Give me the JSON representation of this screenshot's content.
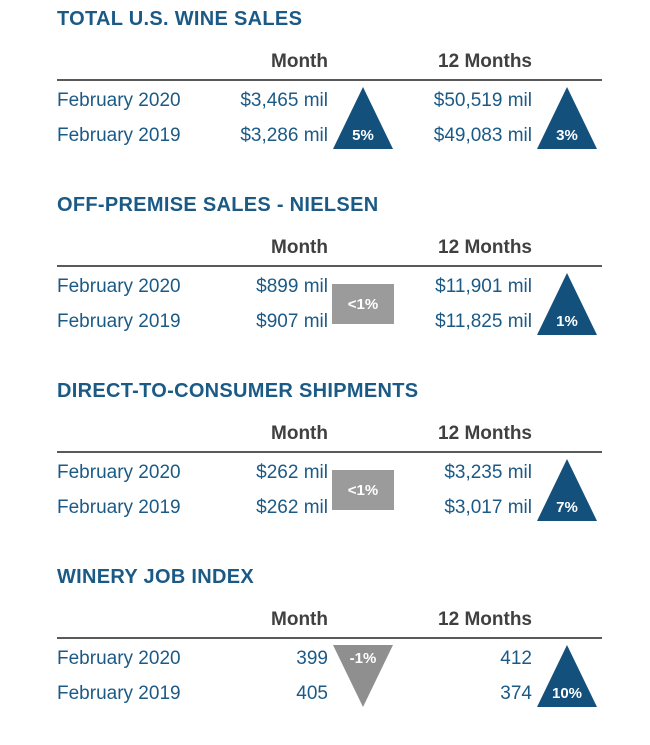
{
  "headers": {
    "month": "Month",
    "twelve_months": "12 Months"
  },
  "colors": {
    "text_blue": "#1C5A86",
    "triangle_blue": "#14507C",
    "flat_gray": "#9B9B9B",
    "down_gray": "#8F8F8F",
    "header_text": "#404040",
    "rule_gray": "#595959"
  },
  "sections": [
    {
      "title": "TOTAL U.S. WINE SALES",
      "rows": [
        {
          "label": "February 2020",
          "month_value": "$3,465 mil",
          "twelve_value": "$50,519 mil"
        },
        {
          "label": "February 2019",
          "month_value": "$3,286 mil",
          "twelve_value": "$49,083 mil"
        }
      ],
      "month_change": {
        "direction": "up",
        "label": "5%"
      },
      "twelve_change": {
        "direction": "up",
        "label": "3%"
      }
    },
    {
      "title": "OFF-PREMISE SALES - NIELSEN",
      "rows": [
        {
          "label": "February 2020",
          "month_value": "$899 mil",
          "twelve_value": "$11,901 mil"
        },
        {
          "label": "February 2019",
          "month_value": "$907 mil",
          "twelve_value": "$11,825 mil"
        }
      ],
      "month_change": {
        "direction": "flat",
        "label": "<1%"
      },
      "twelve_change": {
        "direction": "up",
        "label": "1%"
      }
    },
    {
      "title": "DIRECT-TO-CONSUMER SHIPMENTS",
      "rows": [
        {
          "label": "February 2020",
          "month_value": "$262 mil",
          "twelve_value": "$3,235 mil"
        },
        {
          "label": "February 2019",
          "month_value": "$262 mil",
          "twelve_value": "$3,017 mil"
        }
      ],
      "month_change": {
        "direction": "flat",
        "label": "<1%"
      },
      "twelve_change": {
        "direction": "up",
        "label": "7%"
      }
    },
    {
      "title": "WINERY JOB INDEX",
      "rows": [
        {
          "label": "February 2020",
          "month_value": "399",
          "twelve_value": "412"
        },
        {
          "label": "February 2019",
          "month_value": "405",
          "twelve_value": "374"
        }
      ],
      "month_change": {
        "direction": "down",
        "label": "-1%"
      },
      "twelve_change": {
        "direction": "up",
        "label": "10%"
      }
    }
  ],
  "chart_data": [
    {
      "type": "table",
      "title": "TOTAL U.S. WINE SALES",
      "columns": [
        "",
        "Month",
        "12 Months"
      ],
      "rows": [
        [
          "February 2020",
          "$3,465 mil",
          "$50,519 mil"
        ],
        [
          "February 2019",
          "$3,286 mil",
          "$49,083 mil"
        ]
      ],
      "change_indicators": {
        "month": {
          "direction": "up",
          "label": "5%"
        },
        "twelve_months": {
          "direction": "up",
          "label": "3%"
        }
      }
    },
    {
      "type": "table",
      "title": "OFF-PREMISE SALES - NIELSEN",
      "columns": [
        "",
        "Month",
        "12 Months"
      ],
      "rows": [
        [
          "February 2020",
          "$899 mil",
          "$11,901 mil"
        ],
        [
          "February 2019",
          "$907 mil",
          "$11,825 mil"
        ]
      ],
      "change_indicators": {
        "month": {
          "direction": "flat",
          "label": "<1%"
        },
        "twelve_months": {
          "direction": "up",
          "label": "1%"
        }
      }
    },
    {
      "type": "table",
      "title": "DIRECT-TO-CONSUMER SHIPMENTS",
      "columns": [
        "",
        "Month",
        "12 Months"
      ],
      "rows": [
        [
          "February 2020",
          "$262 mil",
          "$3,235 mil"
        ],
        [
          "February 2019",
          "$262 mil",
          "$3,017 mil"
        ]
      ],
      "change_indicators": {
        "month": {
          "direction": "flat",
          "label": "<1%"
        },
        "twelve_months": {
          "direction": "up",
          "label": "7%"
        }
      }
    },
    {
      "type": "table",
      "title": "WINERY JOB INDEX",
      "columns": [
        "",
        "Month",
        "12 Months"
      ],
      "rows": [
        [
          "February 2020",
          "399",
          "412"
        ],
        [
          "February 2019",
          "405",
          "374"
        ]
      ],
      "change_indicators": {
        "month": {
          "direction": "down",
          "label": "-1%"
        },
        "twelve_months": {
          "direction": "up",
          "label": "10%"
        }
      }
    }
  ]
}
